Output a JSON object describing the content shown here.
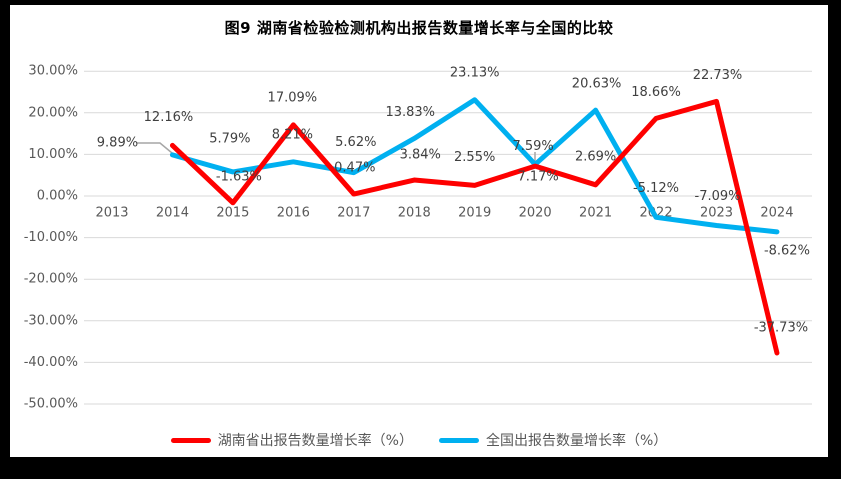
{
  "title": "图9 湖南省检验检测机构出报告数量增长率与全国的比较",
  "chart_data": {
    "type": "line",
    "categories": [
      "2013",
      "2014",
      "2015",
      "2016",
      "2017",
      "2018",
      "2019",
      "2020",
      "2021",
      "2022",
      "2023",
      "2024"
    ],
    "series": [
      {
        "name": "湖南省出报告数量增长率（%）",
        "color": "#FE0000",
        "values": [
          null,
          12.16,
          -1.63,
          17.09,
          0.47,
          3.84,
          2.55,
          7.17,
          2.69,
          18.66,
          22.73,
          -37.73
        ],
        "labels": [
          "",
          "12.16%",
          "-1.63%",
          "17.09%",
          "0.47%",
          "3.84%",
          "2.55%",
          "7.17%",
          "2.69%",
          "18.66%",
          "22.73%",
          "-37.73%"
        ],
        "label_offsets": [
          [
            0,
            0
          ],
          [
            -4,
            -28
          ],
          [
            6,
            -26
          ],
          [
            -1,
            -27
          ],
          [
            1,
            -26
          ],
          [
            6,
            -25
          ],
          [
            0,
            -28
          ],
          [
            3,
            11
          ],
          [
            0,
            -28
          ],
          [
            0,
            -26
          ],
          [
            1,
            -26
          ],
          [
            4,
            -25
          ]
        ]
      },
      {
        "name": "全国出报告数量增长率（%）",
        "color": "#00B0F0",
        "values": [
          null,
          9.89,
          5.79,
          8.21,
          5.62,
          13.83,
          23.13,
          7.59,
          20.63,
          -5.12,
          -7.09,
          -8.62
        ],
        "labels": [
          "",
          "9.89%",
          "5.79%",
          "8.21%",
          "5.62%",
          "13.83%",
          "23.13%",
          "7.59%",
          "20.63%",
          "-5.12%",
          "-7.09%",
          "-8.62%"
        ],
        "label_offsets": [
          [
            0,
            0
          ],
          [
            -55,
            -12
          ],
          [
            -3,
            -33
          ],
          [
            -1,
            -27
          ],
          [
            2,
            -30
          ],
          [
            -4,
            -26
          ],
          [
            0,
            -27
          ],
          [
            -2,
            -18
          ],
          [
            1,
            -26
          ],
          [
            0,
            -29
          ],
          [
            1,
            -29
          ],
          [
            10,
            19
          ]
        ]
      }
    ],
    "ylim": [
      -50,
      30
    ],
    "ytick_step": 10,
    "yticks": [
      30,
      20,
      10,
      0,
      -10,
      -20,
      -30,
      -40,
      -50
    ],
    "ytick_labels": [
      "30.00%",
      "20.00%",
      "10.00%",
      "0.00%",
      "-10.00%",
      "-20.00%",
      "-30.00%",
      "-40.00%",
      "-50.00%"
    ],
    "grid": true,
    "legend_position": "bottom",
    "annotations": [
      {
        "name": "leader-line-9-89",
        "points": [
          [
            127,
            138
          ],
          [
            150,
            138
          ],
          [
            162,
            148
          ]
        ]
      },
      {
        "name": "leader-line-7-59",
        "points": [
          [
            525,
            147
          ],
          [
            525,
            157
          ]
        ]
      }
    ],
    "colors": {
      "gridline": "#D9D9D9",
      "tick_text": "#595959",
      "data_label_text": "#404040",
      "leader_line": "#A6A6A6",
      "plot_background": "#ffffff",
      "frame": "#000000"
    }
  },
  "legend": {
    "items": [
      {
        "label": "湖南省出报告数量增长率（%）"
      },
      {
        "label": "全国出报告数量增长率（%）"
      }
    ]
  }
}
